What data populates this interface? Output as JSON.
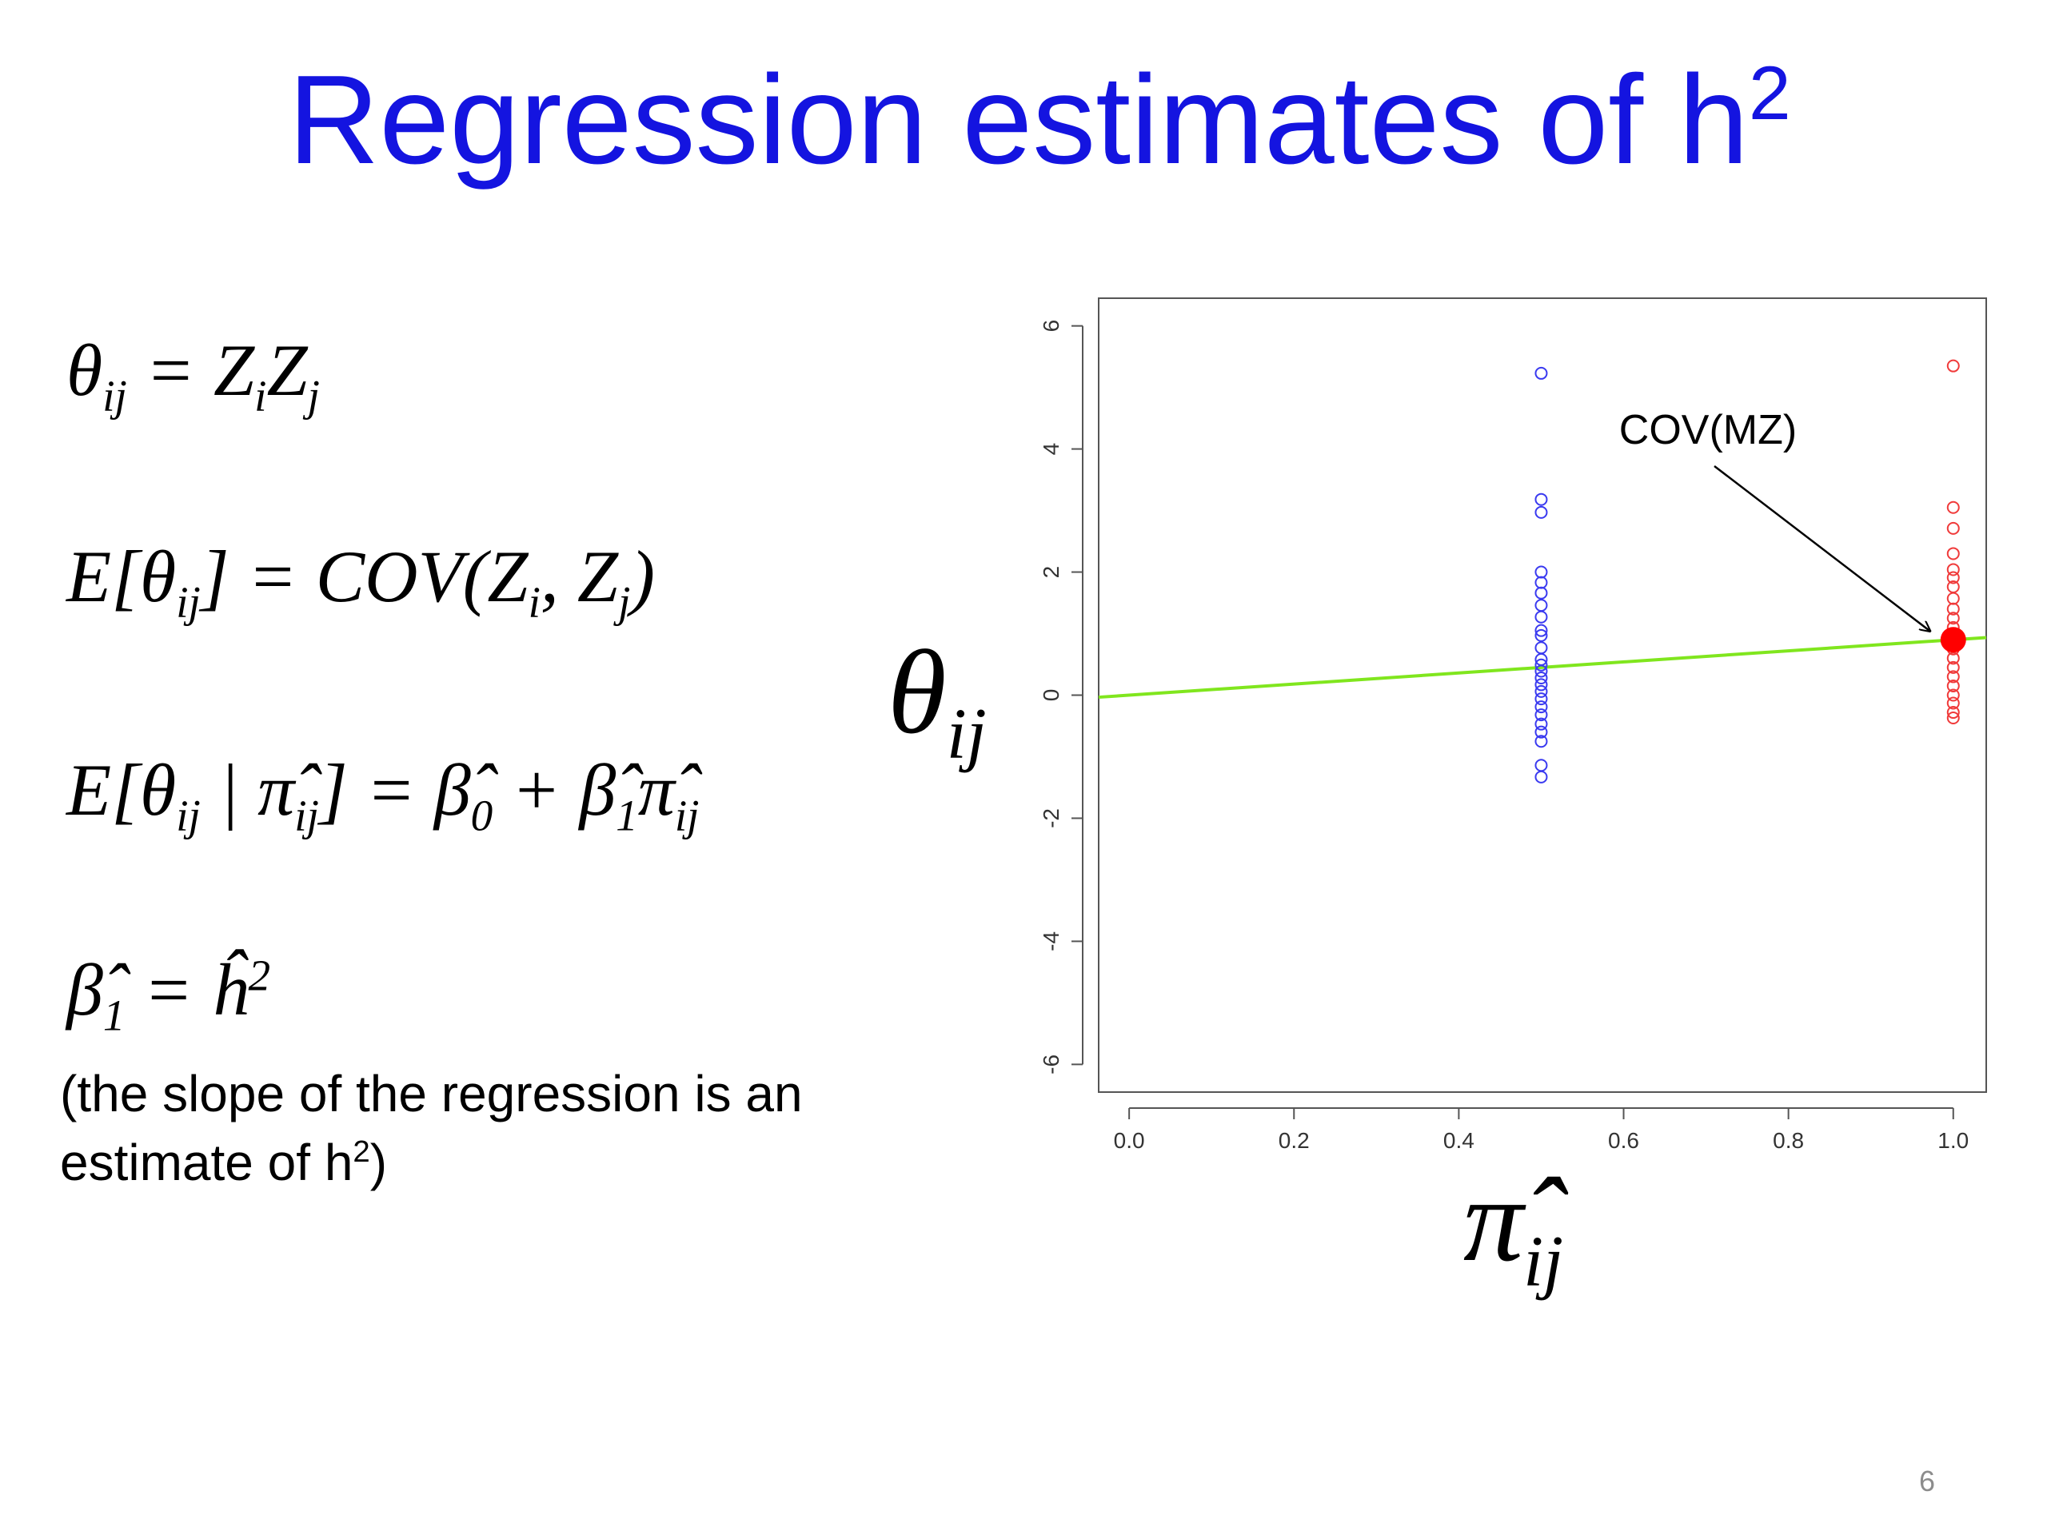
{
  "title": {
    "text": "Regression estimates of h",
    "sup": "2"
  },
  "equations": [
    [
      {
        "text": "θ",
        "sub": "ij"
      },
      {
        "text": " = Z",
        "sub": "i"
      },
      {
        "text": "Z",
        "sub": "j"
      }
    ],
    [
      {
        "text": "E[θ",
        "sub": "ij"
      },
      {
        "text": "] = COV(Z",
        "sub": "i"
      },
      {
        "text": ", Z",
        "sub": "j"
      },
      {
        "text": ")"
      }
    ],
    [
      {
        "text": "E[θ",
        "sub": "ij"
      },
      {
        "text": " | π̂",
        "sub": "ij"
      },
      {
        "text": "] = β̂",
        "sub": "0"
      },
      {
        "text": " + β̂",
        "sub": "1"
      },
      {
        "text": "π̂",
        "sub": "ij"
      }
    ],
    [
      {
        "text": "β̂",
        "sub": "1"
      },
      {
        "text": " = ĥ",
        "sup": "2"
      }
    ]
  ],
  "note": [
    {
      "text": "(the slope of the regression is an estimate of h",
      "sup": "2"
    },
    {
      "text": ")"
    }
  ],
  "page_number": "6",
  "chart_data": {
    "type": "scatter",
    "x_label": {
      "text": "π̂",
      "sub": "ij"
    },
    "y_label": {
      "text": "θ",
      "sub": "ij"
    },
    "xlim": [
      -0.037,
      1.04
    ],
    "ylim": [
      -6.45,
      6.45
    ],
    "xticks": [
      {
        "value": 0,
        "label": "0.0"
      },
      0.2,
      0.4,
      0.6,
      0.8,
      {
        "value": 1,
        "label": "1.0"
      }
    ],
    "yticks": [
      -6,
      -4,
      -2,
      0,
      2,
      4,
      6
    ],
    "series": [
      {
        "color": "#3a3af0",
        "x": [
          0.5,
          0.5,
          0.5,
          0.5,
          0.5,
          0.5,
          0.5,
          0.5,
          0.5,
          0.5,
          0.5,
          0.5,
          0.5,
          0.5,
          0.5,
          0.5,
          0.5,
          0.5,
          0.5,
          0.5,
          0.5,
          0.5,
          0.5,
          0.5,
          0.5
        ],
        "values": [
          5.23,
          3.18,
          2.97,
          2.0,
          1.83,
          1.66,
          1.46,
          1.27,
          1.05,
          0.97,
          0.77,
          0.58,
          0.49,
          0.39,
          0.28,
          0.17,
          0.06,
          -0.06,
          -0.19,
          -0.32,
          -0.47,
          -0.6,
          -0.75,
          -1.14,
          -1.33
        ]
      },
      {
        "color": "#f03a3a",
        "x": [
          1,
          1,
          1,
          1,
          1,
          1,
          1,
          1,
          1,
          1,
          1,
          1,
          1,
          1,
          1,
          1,
          1,
          1,
          1,
          1,
          1
        ],
        "values": [
          5.35,
          3.05,
          2.71,
          2.3,
          2.04,
          1.91,
          1.76,
          1.57,
          1.4,
          1.25,
          1.1,
          0.92,
          0.75,
          0.6,
          0.45,
          0.3,
          0.15,
          0,
          -0.13,
          -0.28,
          -0.37
        ]
      }
    ],
    "highlight": {
      "text": "COV(MZ)",
      "x": 1,
      "y": 0.9,
      "color": "#ff0000"
    },
    "regression_line": {
      "intercept": 0,
      "slope": 0.9,
      "color": "#80e61e"
    }
  }
}
